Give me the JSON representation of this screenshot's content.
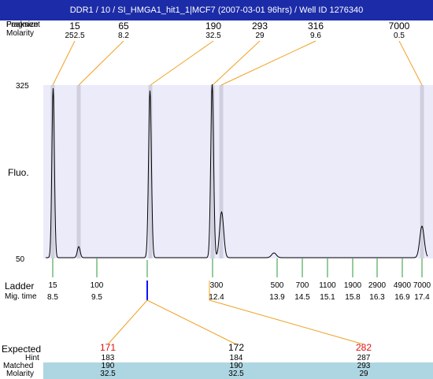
{
  "header": {
    "title": "DDR1 / 10 / SI_HMGA1_hit1_1|MCF7 (2007-03-01 96hrs) / Well ID 1276340"
  },
  "labels": {
    "fragment": "Fragment",
    "peaksize": "Peaksize",
    "molarity": "Molarity",
    "fluo": "Fluo.",
    "ladder": "Ladder",
    "mig_time": "Mig. time",
    "expected": "Expected",
    "hint": "Hint",
    "matched": "Matched",
    "bottom_molarity": "Molarity"
  },
  "colors": {
    "header_bg": "#1c2ca8",
    "plot_bg": "#ebebfa",
    "marker": "#cfcfdf",
    "connector": "#f0a020",
    "tick": "#2a9a3a",
    "selection": "#1010ff",
    "matched_band": "#aed6e2",
    "expected_highlight": "#e01010"
  },
  "chart_data": {
    "type": "line",
    "y_axis": {
      "ticks": [
        325,
        50
      ]
    },
    "peaks": [
      {
        "size": "15",
        "molarity": "252.5"
      },
      {
        "size": "65",
        "molarity": "8.2"
      },
      {
        "size": "190",
        "molarity": "32.5"
      },
      {
        "size": "293",
        "molarity": "29"
      },
      {
        "size": "316",
        "molarity": "9.6"
      },
      {
        "size": "7000",
        "molarity": "0.5"
      }
    ],
    "ladder": [
      {
        "size": "15",
        "mig": "8.5"
      },
      {
        "size": "100",
        "mig": "9.5"
      },
      {
        "size": "300",
        "mig": "12.4"
      },
      {
        "size": "500",
        "mig": "13.9"
      },
      {
        "size": "700",
        "mig": "14.5"
      },
      {
        "size": "1100",
        "mig": "15.1"
      },
      {
        "size": "1900",
        "mig": "15.8"
      },
      {
        "size": "2900",
        "mig": "16.3"
      },
      {
        "size": "4900",
        "mig": "16.9"
      },
      {
        "size": "7000",
        "mig": "17.4"
      }
    ],
    "expected": [
      {
        "expected": "171",
        "highlight": true,
        "hint": "183",
        "matched": "190",
        "molarity": "32.5"
      },
      {
        "expected": "172",
        "highlight": false,
        "hint": "184",
        "matched": "190",
        "molarity": "32.5"
      },
      {
        "expected": "282",
        "highlight": true,
        "hint": "287",
        "matched": "293",
        "molarity": "29"
      }
    ]
  }
}
